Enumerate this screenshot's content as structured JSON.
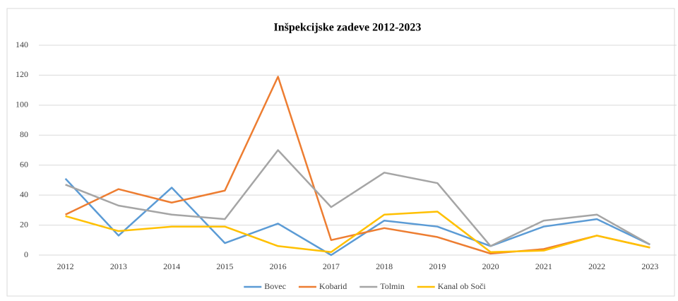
{
  "chart_data": {
    "type": "line",
    "title": "Inšpekcijske zadeve 2012-2023",
    "categories": [
      "2012",
      "2013",
      "2014",
      "2015",
      "2016",
      "2017",
      "2018",
      "2019",
      "2020",
      "2021",
      "2022",
      "2023"
    ],
    "series": [
      {
        "name": "Bovec",
        "color": "#5b9bd5",
        "values": [
          51,
          13,
          45,
          8,
          21,
          0,
          23,
          19,
          6,
          19,
          24,
          7
        ]
      },
      {
        "name": "Kobarid",
        "color": "#ed7d31",
        "values": [
          27,
          44,
          35,
          43,
          119,
          10,
          18,
          12,
          1,
          4,
          13,
          5
        ]
      },
      {
        "name": "Tolmin",
        "color": "#a5a5a5",
        "values": [
          47,
          33,
          27,
          24,
          70,
          32,
          55,
          48,
          6,
          23,
          27,
          7
        ]
      },
      {
        "name": "Kanal ob Soči",
        "color": "#ffc000",
        "values": [
          26,
          16,
          19,
          19,
          6,
          2,
          27,
          29,
          2,
          3,
          13,
          5
        ]
      }
    ],
    "ylim": [
      0,
      140
    ],
    "yticks": [
      0,
      20,
      40,
      60,
      80,
      100,
      120,
      140
    ],
    "grid": true,
    "legend": "bottom"
  }
}
